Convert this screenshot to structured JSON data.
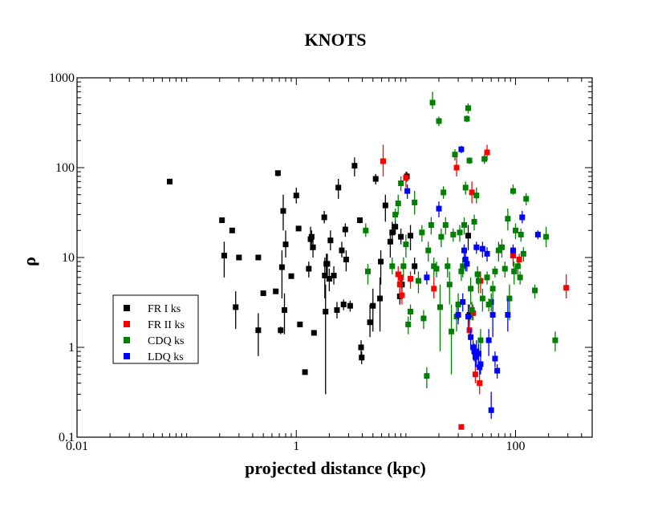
{
  "chart_data": {
    "type": "scatter",
    "title": "KNOTS",
    "xlabel": "projected distance (kpc)",
    "ylabel": "ρ",
    "xscale": "log",
    "yscale": "log",
    "xlim": [
      0.01,
      500
    ],
    "ylim": [
      0.1,
      1000
    ],
    "xticks": [
      {
        "value": 0.01,
        "label": "0.01"
      },
      {
        "value": 1,
        "label": "1"
      },
      {
        "value": 100,
        "label": "100"
      }
    ],
    "yticks": [
      {
        "value": 0.1,
        "label": "0.1"
      },
      {
        "value": 1,
        "label": "1"
      },
      {
        "value": 10,
        "label": "10"
      },
      {
        "value": 100,
        "label": "100"
      },
      {
        "value": 1000,
        "label": "1000"
      }
    ],
    "legend_position": "left-middle",
    "series": [
      {
        "name": "FR I ks",
        "color": "#000000",
        "points": [
          [
            0.07,
            70,
            70,
            70
          ],
          [
            0.21,
            26,
            26,
            26
          ],
          [
            0.22,
            10.5,
            6,
            15
          ],
          [
            0.26,
            20,
            20,
            20
          ],
          [
            0.28,
            2.8,
            1.6,
            4.2
          ],
          [
            0.3,
            10,
            10,
            10
          ],
          [
            0.45,
            10,
            10,
            10
          ],
          [
            0.45,
            1.55,
            0.8,
            2.4
          ],
          [
            0.5,
            4,
            4,
            4
          ],
          [
            0.65,
            4.2,
            4.2,
            4.2
          ],
          [
            0.68,
            87,
            80,
            93
          ],
          [
            0.72,
            1.55,
            1.4,
            1.7
          ],
          [
            0.74,
            7.8,
            3.5,
            12
          ],
          [
            0.76,
            33,
            20,
            50
          ],
          [
            0.78,
            2.6,
            1.4,
            4
          ],
          [
            0.8,
            14,
            10,
            20
          ],
          [
            0.9,
            6.2,
            6.2,
            6.2
          ],
          [
            1.0,
            49,
            40,
            60
          ],
          [
            1.05,
            21,
            21,
            21
          ],
          [
            1.08,
            1.8,
            1.8,
            1.8
          ],
          [
            1.2,
            0.53,
            0.53,
            0.53
          ],
          [
            1.3,
            7.5,
            6,
            9
          ],
          [
            1.35,
            16,
            12,
            22
          ],
          [
            1.38,
            17,
            14,
            20
          ],
          [
            1.42,
            13,
            10,
            16
          ],
          [
            1.45,
            1.45,
            1.45,
            1.45
          ],
          [
            1.8,
            28,
            24,
            33
          ],
          [
            1.82,
            6.3,
            3.5,
            10
          ],
          [
            1.85,
            2.5,
            0.3,
            5
          ],
          [
            1.88,
            8.5,
            6,
            11
          ],
          [
            1.92,
            8.5,
            6,
            11
          ],
          [
            2.0,
            5.8,
            4.2,
            7.5
          ],
          [
            2.05,
            15.5,
            12,
            20
          ],
          [
            2.2,
            6.3,
            5,
            8
          ],
          [
            2.35,
            2.6,
            2.1,
            3.2
          ],
          [
            2.42,
            60,
            45,
            75
          ],
          [
            2.6,
            12,
            10,
            15
          ],
          [
            2.7,
            3,
            2.6,
            3.4
          ],
          [
            2.8,
            20.5,
            17,
            24
          ],
          [
            2.85,
            9.5,
            7,
            12
          ],
          [
            3.1,
            2.9,
            2.5,
            3.3
          ],
          [
            3.4,
            105,
            80,
            130
          ],
          [
            3.8,
            26,
            24,
            28
          ],
          [
            3.9,
            1.0,
            0.8,
            1.2
          ],
          [
            3.95,
            0.77,
            0.65,
            0.9
          ],
          [
            4.7,
            1.9,
            1.3,
            3
          ],
          [
            5.0,
            2.9,
            1.5,
            4.5
          ],
          [
            5.3,
            75,
            65,
            85
          ],
          [
            5.8,
            3.5,
            1.5,
            6
          ],
          [
            5.9,
            9,
            5,
            12
          ],
          [
            6.5,
            38,
            25,
            50
          ],
          [
            7.2,
            15,
            10,
            20
          ],
          [
            7.5,
            19,
            15,
            25
          ],
          [
            8.0,
            22,
            18,
            26
          ],
          [
            8.8,
            3.7,
            3,
            4.5
          ],
          [
            9.0,
            17,
            14,
            21
          ],
          [
            9.2,
            5,
            4,
            6
          ],
          [
            10.2,
            80,
            70,
            90
          ],
          [
            11.0,
            17.5,
            12,
            23
          ],
          [
            12.0,
            8,
            6.5,
            10
          ],
          [
            37,
            17.5,
            12,
            23
          ],
          [
            38,
            2.3,
            1.8,
            3
          ]
        ]
      },
      {
        "name": "FR II ks",
        "color": "#ff0000",
        "points": [
          [
            6.2,
            118,
            80,
            180
          ],
          [
            8.5,
            6.5,
            5,
            8
          ],
          [
            8.8,
            5,
            3.5,
            6.5
          ],
          [
            9.0,
            6,
            5,
            7
          ],
          [
            9.2,
            3.8,
            3,
            4.5
          ],
          [
            10.0,
            77,
            60,
            90
          ],
          [
            11.0,
            5.8,
            4.5,
            7
          ],
          [
            18.0,
            4.5,
            3.5,
            6
          ],
          [
            29.0,
            100,
            80,
            130
          ],
          [
            32,
            0.13,
            0.13,
            0.13
          ],
          [
            38,
            1.55,
            1.2,
            2
          ],
          [
            40,
            53,
            40,
            70
          ],
          [
            41,
            2.4,
            2,
            3
          ],
          [
            43,
            0.5,
            0.4,
            0.6
          ],
          [
            47,
            0.4,
            0.3,
            0.5
          ],
          [
            48,
            5.5,
            4,
            7
          ],
          [
            55,
            148,
            120,
            180
          ],
          [
            95,
            10.5,
            8,
            13
          ],
          [
            108,
            9.5,
            8,
            11
          ],
          [
            290,
            4.6,
            3.5,
            6.5
          ]
        ]
      },
      {
        "name": "CDQ ks",
        "color": "#008000",
        "points": [
          [
            4.3,
            20,
            17,
            24
          ],
          [
            4.5,
            7,
            5,
            8.5
          ],
          [
            7.5,
            8,
            6.5,
            10
          ],
          [
            8.0,
            30,
            25,
            35
          ],
          [
            8.5,
            40,
            30,
            50
          ],
          [
            9.0,
            67,
            55,
            80
          ],
          [
            9.5,
            8,
            6,
            10
          ],
          [
            10.0,
            14,
            10,
            18
          ],
          [
            10.5,
            1.8,
            1.4,
            2.2
          ],
          [
            11.0,
            2.5,
            2,
            3
          ],
          [
            12.0,
            41,
            30,
            55
          ],
          [
            13.0,
            5.5,
            4,
            7
          ],
          [
            14.0,
            19,
            15,
            23
          ],
          [
            14.5,
            2.1,
            1.6,
            2.6
          ],
          [
            15.5,
            0.48,
            0.35,
            0.6
          ],
          [
            16.0,
            12,
            9,
            15
          ],
          [
            17.0,
            23,
            18,
            28
          ],
          [
            18.0,
            8,
            6,
            10
          ],
          [
            19.0,
            7.5,
            6,
            9
          ],
          [
            20.0,
            330,
            290,
            370
          ],
          [
            21.0,
            17,
            13,
            21
          ],
          [
            22.0,
            53,
            45,
            62
          ],
          [
            23.0,
            23,
            18,
            28
          ],
          [
            24.0,
            8,
            6,
            10
          ],
          [
            25.0,
            5,
            3,
            7
          ],
          [
            26.0,
            1.5,
            0.5,
            3
          ],
          [
            27.0,
            18,
            15,
            21
          ],
          [
            28.0,
            140,
            120,
            160
          ],
          [
            29.0,
            2.2,
            1.5,
            3
          ],
          [
            30.0,
            3,
            2,
            4
          ],
          [
            31.0,
            19,
            15,
            23
          ],
          [
            32.0,
            7,
            5.5,
            8.5
          ],
          [
            33.0,
            8,
            6,
            10
          ],
          [
            34.0,
            23,
            18,
            28
          ],
          [
            35.0,
            60,
            50,
            70
          ],
          [
            36.0,
            350,
            320,
            380
          ],
          [
            37.0,
            460,
            400,
            520
          ],
          [
            38.0,
            120,
            110,
            130
          ],
          [
            39.0,
            4.5,
            3,
            6
          ],
          [
            40.0,
            2.6,
            2,
            3.2
          ],
          [
            42,
            25,
            20,
            30
          ],
          [
            44,
            49,
            40,
            60
          ],
          [
            45,
            6.5,
            5,
            8
          ],
          [
            46,
            5.5,
            4,
            7
          ],
          [
            48,
            1.2,
            0.8,
            1.6
          ],
          [
            50,
            3.5,
            2.5,
            4.5
          ],
          [
            52,
            125,
            110,
            140
          ],
          [
            55,
            6,
            5,
            7
          ],
          [
            57,
            3,
            2.5,
            3.5
          ],
          [
            60,
            3.2,
            2.5,
            4
          ],
          [
            62,
            4.5,
            3.5,
            5.5
          ],
          [
            65,
            7,
            6,
            8
          ],
          [
            70,
            12,
            9,
            15
          ],
          [
            75,
            13,
            10,
            16
          ],
          [
            80,
            7.5,
            6,
            9
          ],
          [
            85,
            27,
            20,
            35
          ],
          [
            88,
            3.5,
            2,
            5
          ],
          [
            95,
            55,
            50,
            65
          ],
          [
            97,
            7,
            5,
            9
          ],
          [
            100,
            20,
            16,
            24
          ],
          [
            105,
            8,
            6,
            10
          ],
          [
            110,
            6,
            5,
            7
          ],
          [
            112,
            18,
            15,
            21
          ],
          [
            118,
            11,
            9,
            13
          ],
          [
            125,
            45,
            38,
            52
          ],
          [
            150,
            4.3,
            3.5,
            5
          ],
          [
            190,
            17,
            13,
            22
          ],
          [
            230,
            1.2,
            0.9,
            1.5
          ],
          [
            17.5,
            530,
            450,
            700
          ],
          [
            20.5,
            2.8,
            0.9,
            5
          ]
        ]
      },
      {
        "name": "LDQ ks",
        "color": "#0000ff",
        "points": [
          [
            10.3,
            55,
            45,
            65
          ],
          [
            15.5,
            6,
            5,
            7
          ],
          [
            20,
            35,
            28,
            42
          ],
          [
            30,
            2.3,
            1.8,
            2.8
          ],
          [
            32,
            160,
            145,
            175
          ],
          [
            34,
            12,
            10,
            14
          ],
          [
            35,
            9.5,
            7,
            12
          ],
          [
            36,
            8.5,
            7,
            10
          ],
          [
            37,
            2.2,
            1.5,
            3
          ],
          [
            39,
            1.3,
            1,
            1.6
          ],
          [
            41,
            1.0,
            0.8,
            1.2
          ],
          [
            42,
            0.9,
            0.7,
            1.1
          ],
          [
            43,
            0.78,
            0.6,
            0.95
          ],
          [
            44,
            0.9,
            0.6,
            1.2
          ],
          [
            46,
            0.85,
            0.6,
            1.1
          ],
          [
            47,
            0.6,
            0.5,
            0.7
          ],
          [
            48,
            0.65,
            0.5,
            0.8
          ],
          [
            50,
            12.5,
            10,
            15
          ],
          [
            55,
            11,
            9,
            13
          ],
          [
            57,
            1.2,
            0.8,
            1.6
          ],
          [
            60,
            0.2,
            0.16,
            0.32
          ],
          [
            62,
            2.3,
            1.3,
            3.5
          ],
          [
            65,
            0.75,
            0.6,
            0.9
          ],
          [
            68,
            0.55,
            0.45,
            0.65
          ],
          [
            85,
            2.3,
            1.5,
            3.5
          ],
          [
            95,
            12,
            10,
            14
          ],
          [
            115,
            28,
            24,
            33
          ],
          [
            160,
            18,
            16,
            20
          ],
          [
            44,
            13,
            11,
            15
          ],
          [
            33,
            3.2,
            2.5,
            4
          ]
        ]
      }
    ]
  }
}
